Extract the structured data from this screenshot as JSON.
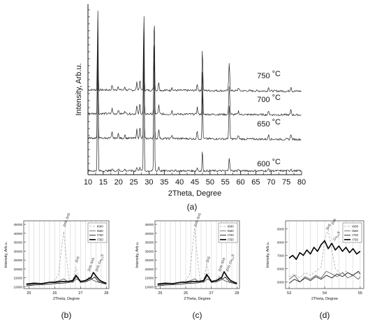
{
  "colors": {
    "background": "#ffffff",
    "main_trace": "#222222"
  },
  "chart_data": [
    {
      "type": "line",
      "panel_label": "(a)",
      "xlabel": "2Theta, Degree",
      "ylabel": "Intensity, Arb.u.",
      "xlim": [
        10,
        80
      ],
      "xticks": [
        10,
        15,
        20,
        25,
        30,
        35,
        40,
        45,
        50,
        55,
        60,
        65,
        70,
        75,
        80
      ],
      "grid": false,
      "y_tick_labels": false,
      "series": [
        {
          "name": "750 °C",
          "name_text": "750",
          "name_unit": "°C",
          "offset": 3,
          "color": "#222222"
        },
        {
          "name": "700 °C",
          "name_text": "700",
          "name_unit": "°C",
          "offset": 2,
          "color": "#222222"
        },
        {
          "name": "650 °C",
          "name_text": "650",
          "name_unit": "°C",
          "offset": 1,
          "color": "#222222"
        },
        {
          "name": "600 °C",
          "name_text": "600",
          "name_unit": "°C",
          "offset": 0,
          "color": "#222222"
        }
      ],
      "peaks": [
        {
          "x": 13.2,
          "height": 1.0
        },
        {
          "x": 28.3,
          "height": 1.0
        },
        {
          "x": 31.7,
          "height": 1.0
        },
        {
          "x": 47.5,
          "height": 0.55
        },
        {
          "x": 56.3,
          "height": 0.34
        },
        {
          "x": 26.0,
          "height": 0.09
        },
        {
          "x": 27.0,
          "height": 0.12
        },
        {
          "x": 33.2,
          "height": 0.1
        },
        {
          "x": 45.8,
          "height": 0.08
        },
        {
          "x": 17.9,
          "height": 0.06
        },
        {
          "x": 19.9,
          "height": 0.05
        },
        {
          "x": 22.1,
          "height": 0.04
        },
        {
          "x": 37.5,
          "height": 0.04
        },
        {
          "x": 59.3,
          "height": 0.04
        },
        {
          "x": 69.2,
          "height": 0.05
        },
        {
          "x": 76.5,
          "height": 0.06
        }
      ]
    },
    {
      "type": "line",
      "panel_label": "(b)",
      "xlabel": "2Theta, Degree",
      "ylabel": "Intensity, Arb.u.",
      "xlim": [
        24.8,
        28.1
      ],
      "xticks": [
        25,
        26,
        27,
        28
      ],
      "ylim": [
        9000,
        47000
      ],
      "yticks": [
        10000,
        15000,
        20000,
        25000,
        30000,
        35000,
        40000,
        45000
      ],
      "grid": true,
      "legend_position": "top-right",
      "annotations": [
        {
          "text": "ZnS; SnS",
          "x": 26.35
        },
        {
          "text": "ZnS",
          "x": 26.82
        },
        {
          "text": "ZnS; SnS",
          "x": 27.3
        },
        {
          "text": "ZnS; Cu",
          "sub": "2-x",
          "tail": "S",
          "x": 27.6
        }
      ],
      "series": [
        {
          "name": "t600",
          "color": "#aaaaaa",
          "dash": "3,2",
          "width": 0.8,
          "x": [
            24.9,
            25.2,
            25.5,
            25.8,
            26.0,
            26.15,
            26.25,
            26.35,
            26.45,
            26.55,
            26.7,
            26.82,
            26.95,
            27.1,
            27.3,
            27.45,
            27.6,
            27.8,
            28.0
          ],
          "y": [
            11500,
            11800,
            12000,
            12500,
            13500,
            17000,
            30000,
            41000,
            27000,
            14500,
            13500,
            21000,
            14000,
            13000,
            15000,
            14000,
            13000,
            12500,
            12000
          ]
        },
        {
          "name": "t650",
          "color": "#555555",
          "dash": "",
          "width": 0.8,
          "x": [
            24.9,
            25.2,
            25.5,
            25.8,
            26.0,
            26.2,
            26.35,
            26.5,
            26.7,
            26.85,
            27.0,
            27.2,
            27.35,
            27.5,
            27.7,
            27.9,
            28.0
          ],
          "y": [
            11000,
            11500,
            11800,
            12500,
            12800,
            13500,
            14500,
            13000,
            12500,
            14500,
            13000,
            13500,
            15500,
            13500,
            12500,
            12000,
            11800
          ]
        },
        {
          "name": "t700",
          "color": "#333333",
          "dash": "",
          "width": 1.0,
          "x": [
            24.9,
            25.2,
            25.5,
            25.8,
            26.0,
            26.3,
            26.5,
            26.7,
            26.85,
            27.0,
            27.2,
            27.4,
            27.55,
            27.7,
            27.85,
            28.0
          ],
          "y": [
            10500,
            11000,
            11200,
            11500,
            11800,
            12000,
            12300,
            13000,
            15800,
            12500,
            12800,
            14000,
            15500,
            13000,
            12000,
            11500
          ]
        },
        {
          "name": "t750",
          "color": "#000000",
          "dash": "",
          "width": 1.6,
          "x": [
            24.9,
            25.2,
            25.5,
            25.8,
            26.0,
            26.3,
            26.5,
            26.7,
            26.82,
            27.0,
            27.2,
            27.4,
            27.5,
            27.6,
            27.75,
            27.9,
            28.0
          ],
          "y": [
            11500,
            12000,
            11800,
            12500,
            12500,
            13000,
            13000,
            13500,
            16500,
            13000,
            13500,
            15000,
            18000,
            16000,
            13500,
            12500,
            12000
          ]
        }
      ]
    },
    {
      "type": "line",
      "panel_label": "(c)",
      "xlabel": "2Theta, Degree",
      "ylabel": "Intensity, Arb.u.",
      "xlim": [
        24.8,
        28.1
      ],
      "xticks": [
        25,
        26,
        27,
        28
      ],
      "ylim": [
        9000,
        47000
      ],
      "yticks": [
        10000,
        15000,
        20000,
        25000,
        30000,
        35000,
        40000,
        45000
      ],
      "grid": true,
      "legend_position": "top-right",
      "annotations": [
        {
          "text": "ZnS; SnS",
          "x": 26.35
        },
        {
          "text": "ZnS",
          "x": 26.82
        },
        {
          "text": "ZnS; SnS",
          "x": 27.3
        },
        {
          "text": "ZnS; Cu",
          "sub": "2-x",
          "tail": "S",
          "x": 27.6
        }
      ],
      "series": [
        {
          "name": "t600",
          "color": "#aaaaaa",
          "dash": "3,2",
          "width": 0.8,
          "x": [
            24.9,
            25.2,
            25.5,
            25.8,
            26.0,
            26.15,
            26.25,
            26.35,
            26.45,
            26.55,
            26.7,
            26.82,
            26.95,
            27.1,
            27.3,
            27.45,
            27.6,
            27.8,
            28.0
          ],
          "y": [
            11500,
            11800,
            12000,
            12500,
            13500,
            17000,
            30000,
            43000,
            27000,
            14500,
            13500,
            23000,
            14000,
            13000,
            16000,
            14000,
            13000,
            12500,
            12000
          ]
        },
        {
          "name": "t650",
          "color": "#555555",
          "dash": "",
          "width": 0.8,
          "x": [
            24.9,
            25.2,
            25.5,
            25.8,
            26.0,
            26.2,
            26.35,
            26.5,
            26.7,
            26.85,
            27.0,
            27.2,
            27.35,
            27.5,
            27.7,
            27.9,
            28.0
          ],
          "y": [
            11000,
            11500,
            11800,
            12500,
            12800,
            13500,
            14500,
            13000,
            12500,
            14500,
            13000,
            13500,
            15500,
            13500,
            12500,
            12000,
            11800
          ]
        },
        {
          "name": "t700",
          "color": "#333333",
          "dash": "",
          "width": 1.0,
          "x": [
            24.9,
            25.2,
            25.5,
            25.8,
            26.0,
            26.3,
            26.5,
            26.7,
            26.85,
            27.0,
            27.2,
            27.4,
            27.55,
            27.7,
            27.85,
            28.0
          ],
          "y": [
            10500,
            11000,
            11200,
            11500,
            11800,
            12000,
            12300,
            13000,
            16500,
            12500,
            12800,
            14000,
            15500,
            13000,
            12000,
            11500
          ]
        },
        {
          "name": "t750",
          "color": "#000000",
          "dash": "",
          "width": 1.6,
          "x": [
            24.9,
            25.2,
            25.5,
            25.8,
            26.0,
            26.3,
            26.5,
            26.7,
            26.82,
            27.0,
            27.2,
            27.4,
            27.5,
            27.6,
            27.75,
            27.9,
            28.0
          ],
          "y": [
            11500,
            12000,
            11800,
            12500,
            12500,
            13000,
            13000,
            13500,
            17000,
            13000,
            13500,
            15000,
            18500,
            16000,
            13500,
            12500,
            12000
          ]
        }
      ]
    },
    {
      "type": "line",
      "panel_label": "(d)",
      "xlabel": "2Theta, Degree",
      "ylabel": "Intensity, Arb.u.",
      "xlim": [
        52.9,
        55.1
      ],
      "xticks": [
        53,
        54,
        55
      ],
      "ylim": [
        4500,
        9600
      ],
      "yticks": [
        5000,
        6000,
        7000,
        8000,
        9000
      ],
      "grid": true,
      "legend_position": "top-right",
      "annotations": [
        {
          "text": "SnS",
          "x": 54.05
        },
        {
          "text": "ZnS",
          "x": 54.2
        },
        {
          "text": "Cu",
          "sub": "2-x",
          "tail": "S",
          "x": 54.25
        }
      ],
      "series": [
        {
          "name": "r600",
          "color": "#aaaaaa",
          "dash": "3,2",
          "width": 0.8,
          "x": [
            53.0,
            53.15,
            53.3,
            53.45,
            53.6,
            53.75,
            53.9,
            54.0,
            54.1,
            54.2,
            54.3,
            54.45,
            54.6,
            54.75,
            54.9,
            55.0
          ],
          "y": [
            5400,
            5600,
            5300,
            5700,
            5500,
            5800,
            6100,
            8200,
            8900,
            7400,
            6000,
            5600,
            5800,
            5500,
            5700,
            5500
          ]
        },
        {
          "name": "r650",
          "color": "#555555",
          "dash": "",
          "width": 0.8,
          "x": [
            53.0,
            53.15,
            53.3,
            53.45,
            53.6,
            53.75,
            53.9,
            54.05,
            54.2,
            54.35,
            54.5,
            54.65,
            54.8,
            54.95,
            55.0
          ],
          "y": [
            5200,
            5500,
            5000,
            5400,
            5200,
            5500,
            5300,
            5800,
            5600,
            5400,
            5700,
            5300,
            5500,
            5200,
            5400
          ]
        },
        {
          "name": "r700",
          "color": "#333333",
          "dash": "",
          "width": 1.0,
          "x": [
            53.0,
            53.15,
            53.3,
            53.45,
            53.6,
            53.75,
            53.9,
            54.05,
            54.2,
            54.35,
            54.5,
            54.65,
            54.8,
            54.95,
            55.0
          ],
          "y": [
            4900,
            5200,
            5000,
            5300,
            5100,
            5400,
            5200,
            5500,
            5300,
            5600,
            5400,
            5700,
            5500,
            5800,
            5600
          ]
        },
        {
          "name": "r750",
          "color": "#000000",
          "dash": "",
          "width": 1.6,
          "x": [
            53.0,
            53.1,
            53.2,
            53.3,
            53.4,
            53.5,
            53.6,
            53.7,
            53.8,
            53.9,
            54.0,
            54.1,
            54.2,
            54.3,
            54.4,
            54.5,
            54.6,
            54.7,
            54.8,
            54.9,
            55.0
          ],
          "y": [
            6800,
            7000,
            6700,
            7200,
            7000,
            7400,
            7100,
            7600,
            7300,
            7800,
            8100,
            7500,
            7900,
            7400,
            7700,
            7300,
            7600,
            7200,
            7500,
            7100,
            7300
          ]
        }
      ]
    }
  ]
}
